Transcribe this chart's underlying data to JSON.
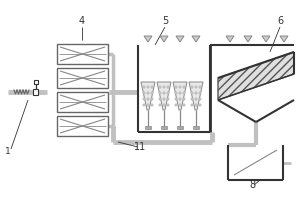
{
  "label_1": "1",
  "label_4": "4",
  "label_5": "5",
  "label_6": "6",
  "label_8": "8",
  "label_11": "11",
  "pipe_color": "#c0c0c0",
  "box_edge": "#555555",
  "dark": "#333333",
  "mid_gray": "#888888",
  "light_gray": "#cccccc",
  "hatch_gray": "#aaaaaa"
}
